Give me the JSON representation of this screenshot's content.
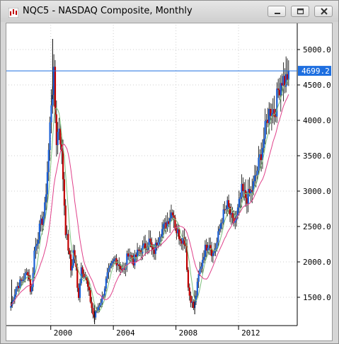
{
  "window": {
    "title": "NQC5 - NASDAQ Composite, Monthly",
    "icon": "chart-candles-icon",
    "buttons": [
      "minimize-icon",
      "restore-icon",
      "close-icon"
    ]
  },
  "chart_data": {
    "type": "bar",
    "subtype": "ohlc-candlestick",
    "title": "NQC5 - NASDAQ Composite, Monthly",
    "xlabel": "",
    "ylabel": "",
    "y_ticks": [
      "5000.0",
      "4500.0",
      "4000.0",
      "3500.0",
      "3000.0",
      "2500.0",
      "2000.0",
      "1500.0"
    ],
    "x_ticks": [
      "2000",
      "2004",
      "2008",
      "2012"
    ],
    "x_tick_years": [
      2000,
      2004,
      2008,
      2012
    ],
    "ylim": [
      1100,
      5350
    ],
    "xlim": [
      1997.3,
      2015.75
    ],
    "grid": true,
    "axis_side": "right",
    "current_price_label": "4699.2",
    "current_price": 4699.2,
    "colors": {
      "up": "#1a5fd6",
      "down": "#c00000",
      "ma_fast": "#7cbf7c",
      "ma_slow": "#e0408a",
      "price_line": "#1e6fe0",
      "grid": "#cfcfcf"
    },
    "price_path": [
      [
        1997.45,
        1380
      ],
      [
        1997.8,
        1640
      ],
      [
        1998.2,
        1750
      ],
      [
        1998.55,
        1870
      ],
      [
        1998.75,
        1520
      ],
      [
        1998.95,
        2150
      ],
      [
        1999.3,
        2480
      ],
      [
        1999.6,
        2700
      ],
      [
        1999.85,
        3500
      ],
      [
        2000.05,
        4350
      ],
      [
        2000.2,
        4600
      ],
      [
        2000.35,
        3700
      ],
      [
        2000.55,
        3950
      ],
      [
        2000.75,
        3350
      ],
      [
        2000.95,
        2450
      ],
      [
        2001.15,
        2150
      ],
      [
        2001.3,
        1850
      ],
      [
        2001.45,
        2150
      ],
      [
        2001.6,
        1950
      ],
      [
        2001.75,
        1450
      ],
      [
        2001.95,
        1930
      ],
      [
        2002.2,
        1800
      ],
      [
        2002.45,
        1550
      ],
      [
        2002.75,
        1200
      ],
      [
        2003.0,
        1350
      ],
      [
        2003.3,
        1500
      ],
      [
        2003.6,
        1800
      ],
      [
        2003.9,
        1950
      ],
      [
        2004.1,
        2050
      ],
      [
        2004.4,
        1950
      ],
      [
        2004.7,
        1860
      ],
      [
        2004.95,
        2150
      ],
      [
        2005.3,
        2000
      ],
      [
        2005.6,
        2150
      ],
      [
        2005.95,
        2200
      ],
      [
        2006.3,
        2300
      ],
      [
        2006.55,
        2100
      ],
      [
        2006.95,
        2420
      ],
      [
        2007.3,
        2500
      ],
      [
        2007.8,
        2750
      ],
      [
        2008.0,
        2450
      ],
      [
        2008.3,
        2350
      ],
      [
        2008.6,
        2300
      ],
      [
        2008.8,
        1580
      ],
      [
        2009.15,
        1330
      ],
      [
        2009.45,
        1800
      ],
      [
        2009.8,
        2150
      ],
      [
        2010.1,
        2300
      ],
      [
        2010.35,
        2100
      ],
      [
        2010.6,
        2250
      ],
      [
        2010.9,
        2600
      ],
      [
        2011.3,
        2800
      ],
      [
        2011.6,
        2550
      ],
      [
        2011.85,
        2600
      ],
      [
        2012.2,
        3000
      ],
      [
        2012.5,
        2900
      ],
      [
        2012.85,
        3000
      ],
      [
        2013.2,
        3300
      ],
      [
        2013.5,
        3600
      ],
      [
        2013.85,
        4050
      ],
      [
        2014.1,
        4200
      ],
      [
        2014.3,
        4100
      ],
      [
        2014.55,
        4450
      ],
      [
        2014.75,
        4600
      ],
      [
        2015.0,
        4550
      ],
      [
        2015.2,
        4700
      ]
    ],
    "spikes": [
      [
        2000.12,
        4300,
        5150
      ],
      [
        1997.5,
        1370,
        1750
      ],
      [
        2002.8,
        1120,
        1400
      ],
      [
        2009.2,
        1260,
        1600
      ]
    ]
  }
}
